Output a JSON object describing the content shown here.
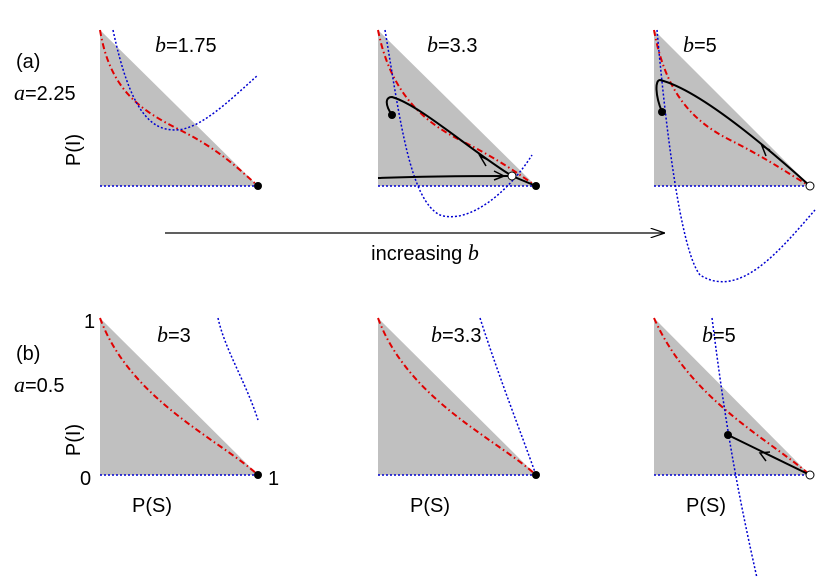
{
  "row_a": {
    "tag": "(a)",
    "param": {
      "symbol": "a",
      "rest": "=2.25"
    },
    "y_label": "P(I)",
    "panels": [
      {
        "symbol": "b",
        "rest": "=1.75"
      },
      {
        "symbol": "b",
        "rest": "=3.3"
      },
      {
        "symbol": "b",
        "rest": "=5"
      }
    ],
    "arrow": {
      "text": "increasing ",
      "symbol": "b"
    }
  },
  "row_b": {
    "tag": "(b)",
    "param": {
      "symbol": "a",
      "rest": "=0.5"
    },
    "y_label": "P(I)",
    "y_top": "1",
    "y_bottom": "0",
    "x_right": "1",
    "panels": [
      {
        "symbol": "b",
        "rest": "=3",
        "x_label": "P(S)"
      },
      {
        "symbol": "b",
        "rest": "=3.3",
        "x_label": "P(S)"
      },
      {
        "symbol": "b",
        "rest": "=5",
        "x_label": "P(S)"
      }
    ]
  }
}
